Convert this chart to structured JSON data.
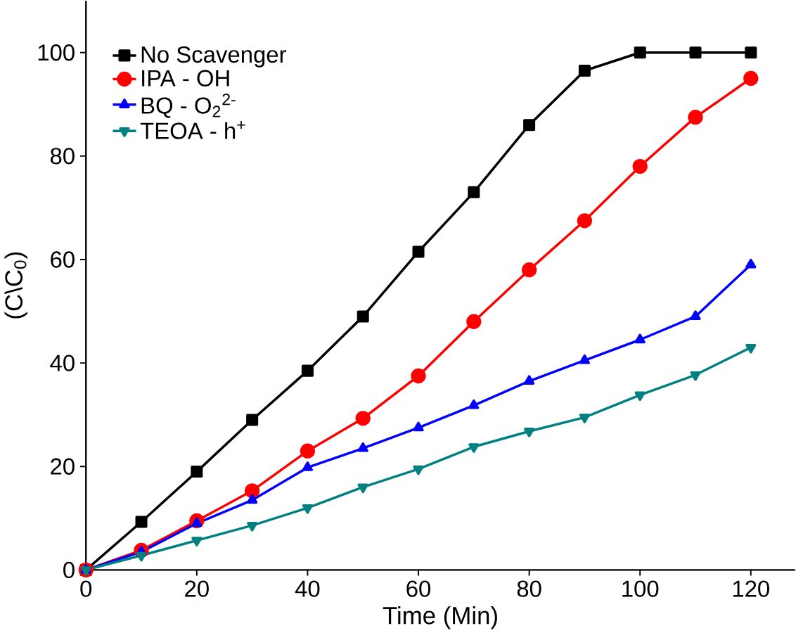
{
  "chart_data": {
    "type": "line",
    "xlabel": "Time (Min)",
    "ylabel": "(C\\C$_{0}$)",
    "x": [
      0,
      10,
      20,
      30,
      40,
      50,
      60,
      70,
      80,
      90,
      100,
      110,
      120
    ],
    "series": [
      {
        "name": "No Scavenger",
        "color": "#000000",
        "marker": "square",
        "values": [
          0,
          9.3,
          19,
          29,
          38.5,
          49,
          61.5,
          73,
          86,
          96.5,
          100,
          100,
          100
        ]
      },
      {
        "name": "IPA - OH",
        "color": "#ff0000",
        "marker": "circle",
        "values": [
          0,
          3.8,
          9.5,
          15.3,
          23,
          29.3,
          37.5,
          48,
          58,
          67.5,
          78,
          87.5,
          95
        ]
      },
      {
        "name": "BQ - O$_{2}$$^{2-}$",
        "color": "#0000ff",
        "marker": "triangle",
        "values": [
          0,
          3.5,
          9,
          13.5,
          19.8,
          23.5,
          27.5,
          31.8,
          36.5,
          40.5,
          44.5,
          49,
          59
        ]
      },
      {
        "name": "TEOA - h$^{+}$",
        "color": "#008080",
        "marker": "triangle_down",
        "values": [
          0,
          2.8,
          5.7,
          8.6,
          12,
          16,
          19.5,
          23.8,
          26.8,
          29.5,
          33.8,
          37.7,
          43
        ]
      }
    ],
    "xlim": [
      0,
      128
    ],
    "ylim": [
      0,
      110
    ],
    "xticks": [
      0,
      20,
      40,
      60,
      80,
      100,
      120
    ],
    "yticks": [
      0,
      20,
      40,
      60,
      80,
      100
    ],
    "grid": false,
    "legend": "top left",
    "line_style": "solid"
  }
}
